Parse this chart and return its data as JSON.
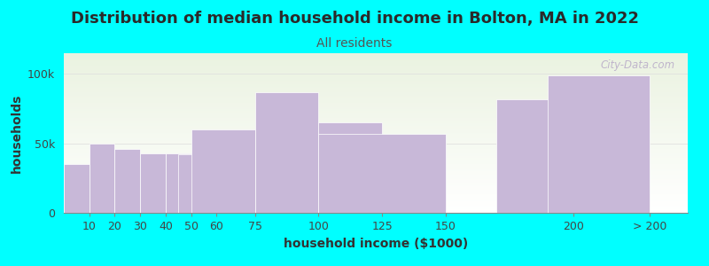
{
  "title": "Distribution of median household income in Bolton, MA in 2022",
  "subtitle": "All residents",
  "xlabel": "household income ($1000)",
  "ylabel": "households",
  "background_color": "#00FFFF",
  "plot_bg_top": "#eaf2e0",
  "plot_bg_bottom": "#ffffff",
  "bar_color": "#c8b8d8",
  "bar_edge_color": "#ffffff",
  "ytick_labels": [
    "0",
    "50k",
    "100k"
  ],
  "ytick_values": [
    0,
    50000,
    100000
  ],
  "ylim": [
    0,
    115000
  ],
  "categories": [
    "10",
    "20",
    "30",
    "40",
    "50",
    "60",
    "75",
    "100",
    "125",
    "150",
    "200",
    "> 200"
  ],
  "values": [
    35000,
    50000,
    46000,
    43000,
    43000,
    42000,
    60000,
    87000,
    65000,
    57000,
    82000,
    99000
  ],
  "title_fontsize": 13,
  "subtitle_fontsize": 10,
  "axis_label_fontsize": 10,
  "tick_fontsize": 9,
  "title_color": "#2a2a2a",
  "subtitle_color": "#555555",
  "watermark_text": "City-Data.com",
  "watermark_color": "#b8aac8"
}
